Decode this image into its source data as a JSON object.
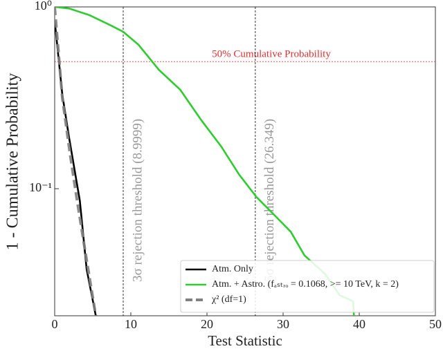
{
  "chart_data": {
    "type": "line",
    "xlabel": "Test Statistic",
    "ylabel": "1 - Cumulative Probability",
    "xlim": [
      0,
      50
    ],
    "xticks": [
      0,
      10,
      20,
      30,
      40,
      50
    ],
    "ylim": [
      0.02,
      1
    ],
    "yscale": "log",
    "yticks": [
      {
        "value": 1,
        "label": "10⁰"
      },
      {
        "value": 0.1,
        "label": "10⁻¹"
      }
    ],
    "legend": "lower right",
    "hlines": [
      {
        "y": 0.5,
        "label": "50% Cumulative Probability",
        "color": "#e03030"
      }
    ],
    "vlines": [
      {
        "x": 8.9999,
        "label": "3σ rejection threshold (8.9999)"
      },
      {
        "x": 26.349,
        "label": "5σ rejection threshold (26.349)"
      }
    ],
    "series": [
      {
        "name": "Atm. Only",
        "color": "#000000",
        "dash": false,
        "x": [
          0,
          1,
          1.9,
          3.3,
          4.2,
          5.4
        ],
        "values": [
          0.84,
          0.33,
          0.19,
          0.086,
          0.036,
          0.02
        ]
      },
      {
        "name": "Atm. + Astro. (fₐₛₜᵣₒ = 0.1068, >= 10 TeV, k = 2)",
        "color": "#2ecc2e",
        "dash": false,
        "x": [
          0,
          1.9,
          4.6,
          7.4,
          9,
          11,
          13.7,
          16.5,
          19.2,
          21.9,
          24.2,
          26.5,
          28.8,
          31,
          32.8,
          35.5,
          37.4,
          39.2,
          39.3
        ],
        "values": [
          1,
          0.98,
          0.9,
          0.79,
          0.73,
          0.62,
          0.45,
          0.35,
          0.24,
          0.17,
          0.12,
          0.09,
          0.072,
          0.058,
          0.043,
          0.034,
          0.026,
          0.024,
          0.02
        ]
      },
      {
        "name": "χ² (df=1)",
        "color": "#808080",
        "dash": true,
        "x": [
          0,
          1,
          2,
          3,
          4,
          5,
          5.4
        ],
        "values": [
          1,
          0.317,
          0.157,
          0.083,
          0.0455,
          0.0253,
          0.02
        ]
      }
    ]
  }
}
